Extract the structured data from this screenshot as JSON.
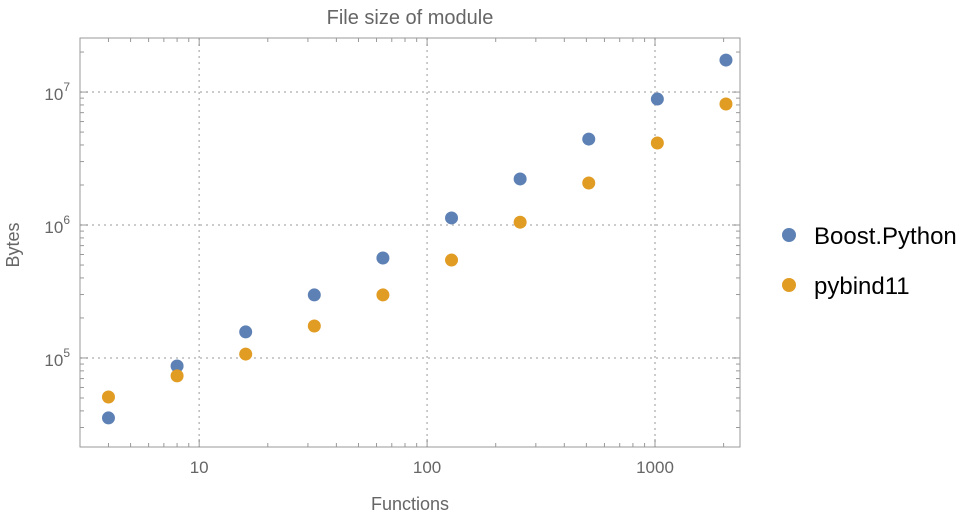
{
  "chart_data": {
    "type": "scatter",
    "title": "File size of module",
    "xlabel": "Functions",
    "ylabel": "Bytes",
    "xscale": "log",
    "yscale": "log",
    "xlim": [
      3.0,
      2360
    ],
    "ylim": [
      21400,
      25500000
    ],
    "xticks": [
      {
        "value": 10,
        "label": "10"
      },
      {
        "value": 100,
        "label": "100"
      },
      {
        "value": 1000,
        "label": "1000"
      }
    ],
    "yticks": [
      {
        "value": 100000,
        "base": "10",
        "exp": "5"
      },
      {
        "value": 1000000,
        "base": "10",
        "exp": "6"
      },
      {
        "value": 10000000,
        "base": "10",
        "exp": "7"
      }
    ],
    "grid": true,
    "legend_placement": "right",
    "x": [
      4,
      8,
      16,
      32,
      64,
      128,
      256,
      512,
      1024,
      2048
    ],
    "series": [
      {
        "name": "Boost.Python",
        "color": "#5E81B5",
        "values": [
          35400,
          87000,
          157000,
          298000,
          565000,
          1130000,
          2220000,
          4430000,
          8860000,
          17400000
        ]
      },
      {
        "name": "pybind11",
        "color": "#E19C24",
        "values": [
          50900,
          73300,
          107000,
          174000,
          298000,
          545000,
          1050000,
          2070000,
          4140000,
          8130000
        ]
      }
    ]
  }
}
